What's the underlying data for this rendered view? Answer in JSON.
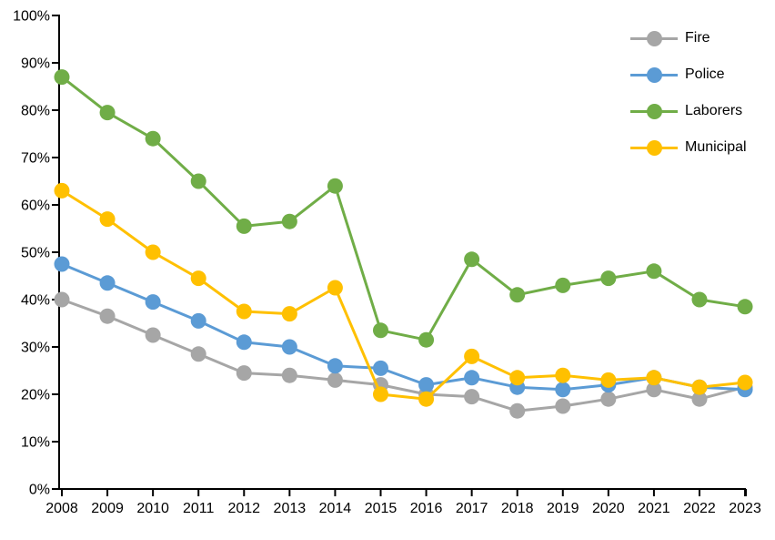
{
  "chart_data": {
    "type": "line",
    "title": "",
    "xlabel": "",
    "ylabel": "",
    "grid": false,
    "legend_position": "top-right",
    "axis_color": "#000000",
    "background_color": "#ffffff",
    "ylim": [
      0,
      100
    ],
    "ytick_step": 10,
    "ytick_labels": [
      "0%",
      "10%",
      "20%",
      "30%",
      "40%",
      "50%",
      "60%",
      "70%",
      "80%",
      "90%",
      "100%"
    ],
    "categories": [
      "2008",
      "2009",
      "2010",
      "2011",
      "2012",
      "2013",
      "2014",
      "2015",
      "2016",
      "2017",
      "2018",
      "2019",
      "2020",
      "2021",
      "2022",
      "2023"
    ],
    "series": [
      {
        "name": "Fire",
        "color": "#A6A6A6",
        "values": [
          40,
          36.5,
          32.5,
          28.5,
          24.5,
          24,
          23,
          22,
          20,
          19.5,
          16.5,
          17.5,
          19,
          21,
          19,
          21.5
        ]
      },
      {
        "name": "Police",
        "color": "#5B9BD5",
        "values": [
          47.5,
          43.5,
          39.5,
          35.5,
          31,
          30,
          26,
          25.5,
          22,
          23.5,
          21.5,
          21,
          22,
          23.5,
          21.5,
          21
        ]
      },
      {
        "name": "Laborers",
        "color": "#70AD47",
        "values": [
          87,
          79.5,
          74,
          65,
          55.5,
          56.5,
          64,
          33.5,
          31.5,
          48.5,
          41,
          43,
          44.5,
          46,
          40,
          38.5
        ]
      },
      {
        "name": "Municipal",
        "color": "#FFC000",
        "values": [
          63,
          57,
          50,
          44.5,
          37.5,
          37,
          42.5,
          20,
          19,
          28,
          23.5,
          24,
          23,
          23.5,
          21.5,
          22.5
        ]
      }
    ]
  }
}
